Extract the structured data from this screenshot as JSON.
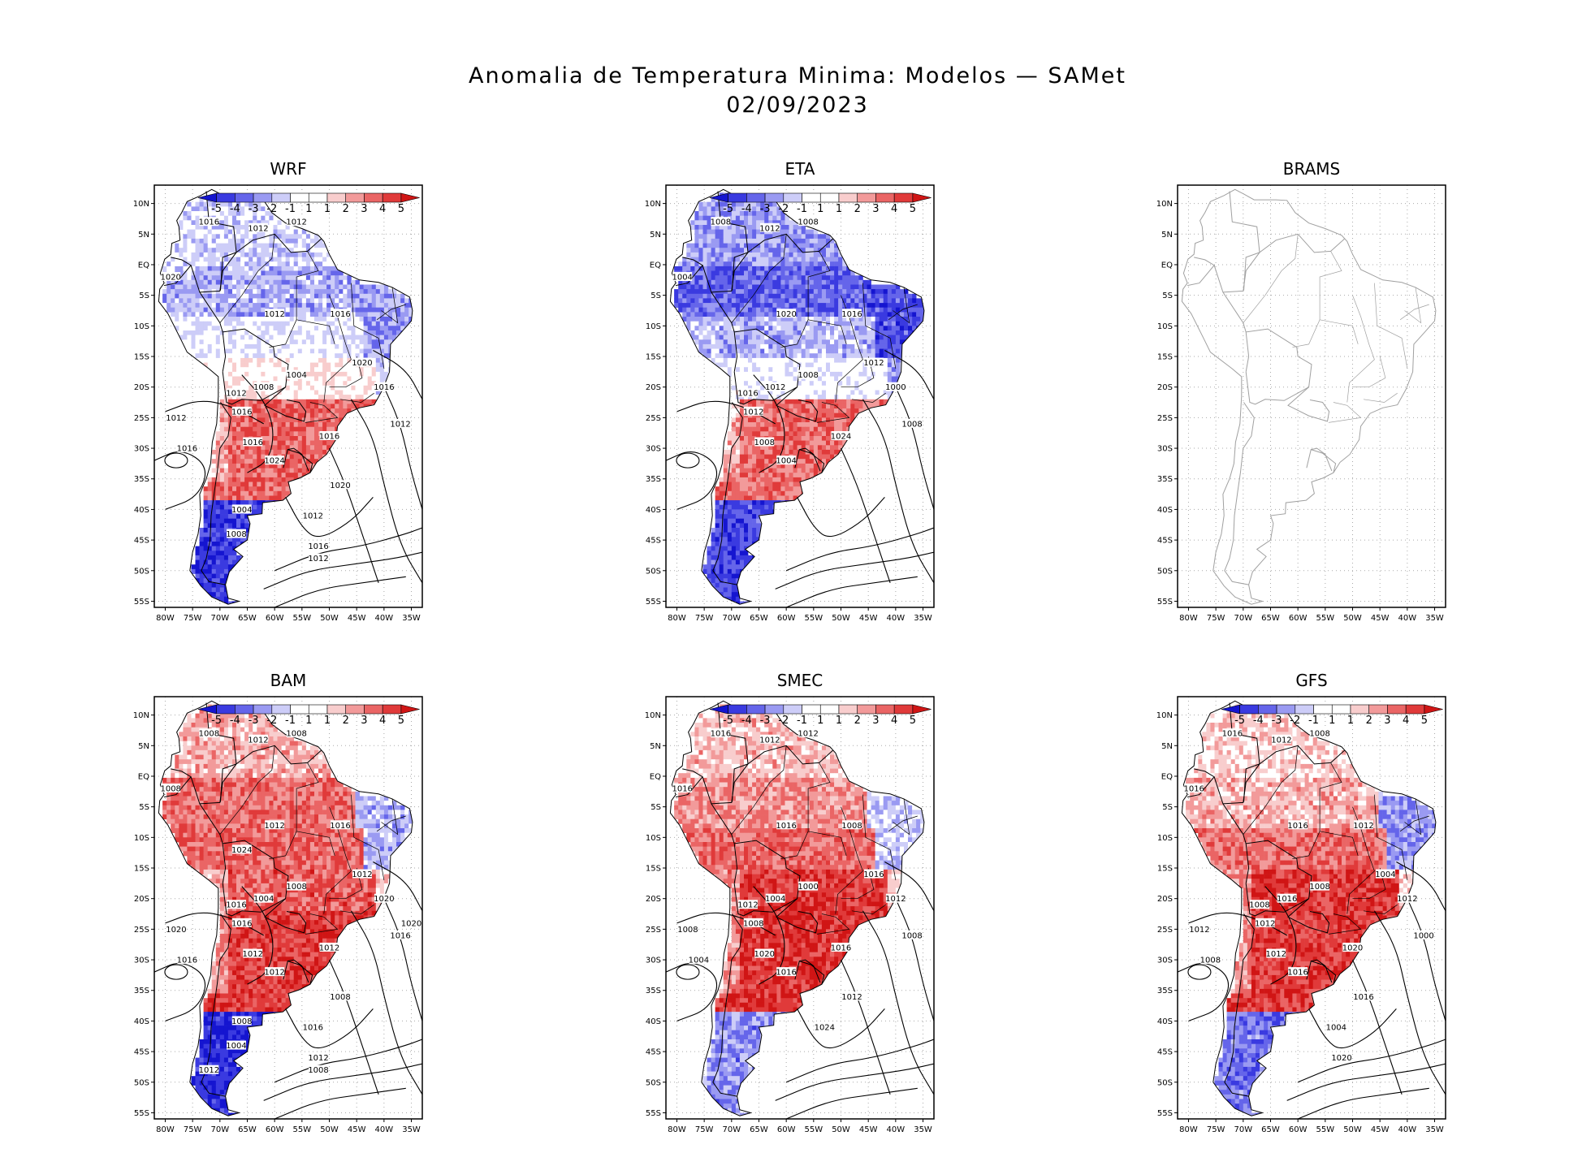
{
  "figure": {
    "title_line1": "Anomalia de Temperatura Minima: Modelos — SAMet",
    "title_line2": "02/09/2023"
  },
  "chart_data": {
    "type": "heatmap",
    "variable": "Anomalia de Temperatura Minima (°C) with sea-level pressure isobars (hPa)",
    "x_ticks": [
      "80W",
      "75W",
      "70W",
      "65W",
      "60W",
      "55W",
      "50W",
      "45W",
      "40W",
      "35W"
    ],
    "y_ticks": [
      "10N",
      "5N",
      "EQ",
      "5S",
      "10S",
      "15S",
      "20S",
      "25S",
      "30S",
      "35S",
      "40S",
      "45S",
      "50S",
      "55S"
    ],
    "xlim": [
      -82,
      -33
    ],
    "ylim": [
      -56,
      13
    ],
    "colorbar": {
      "labels": [
        "-5",
        "-4",
        "-3",
        "-2",
        "-1",
        "1",
        "1",
        "2",
        "3",
        "4",
        "5"
      ],
      "colors": [
        "#1515d0",
        "#3a3ae0",
        "#6565ea",
        "#9a9af2",
        "#cdcdf8",
        "#ffffff",
        "#ffffff",
        "#f8cdcd",
        "#f29a9a",
        "#ea6565",
        "#e03a3a",
        "#d01515"
      ]
    },
    "panels": [
      {
        "name": "WRF",
        "has_data": true,
        "anomaly": {
          "north": -1.2,
          "amazon": -2.0,
          "northeast": -2.5,
          "center": 0.6,
          "south": 3.6,
          "patagonia": -4.6
        },
        "isobar_labels": [
          "1012",
          "1016",
          "1012",
          "1012",
          "1020",
          "1012",
          "1016",
          "1020",
          "1016",
          "1012",
          "1004",
          "1008",
          "1012",
          "1016",
          "1016",
          "1024",
          "1016",
          "1020",
          "1012",
          "1016",
          "1012",
          "1016",
          "1012",
          "1008",
          "1004"
        ]
      },
      {
        "name": "ETA",
        "has_data": true,
        "anomaly": {
          "north": -2.4,
          "amazon": -3.6,
          "northeast": -4.2,
          "center": -0.3,
          "south": 3.4,
          "patagonia": -4.2
        },
        "isobar_labels": [
          "1008",
          "1008",
          "1012",
          "1008",
          "1004",
          "1020",
          "1016",
          "1012",
          "1000",
          "1008",
          "1008",
          "1012",
          "1016",
          "1012",
          "1008",
          "1004",
          "1024"
        ]
      },
      {
        "name": "BRAMS",
        "has_data": false,
        "anomaly": {},
        "isobar_labels": []
      },
      {
        "name": "BAM",
        "has_data": true,
        "anomaly": {
          "north": 2.0,
          "amazon": 3.4,
          "northeast": -2.0,
          "center": 3.8,
          "south": 4.4,
          "patagonia": -5.0
        },
        "isobar_labels": [
          "1012",
          "1008",
          "1012",
          "1008",
          "1008",
          "1012",
          "1016",
          "1012",
          "1020",
          "1016",
          "1008",
          "1004",
          "1016",
          "1016",
          "1012",
          "1012",
          "1012",
          "1008",
          "1020",
          "1016",
          "1016",
          "1012",
          "1008",
          "1004",
          "1008",
          "1012",
          "1020",
          "1024"
        ]
      },
      {
        "name": "SMEC",
        "has_data": true,
        "anomaly": {
          "north": 1.8,
          "amazon": 2.6,
          "northeast": -1.6,
          "center": 4.6,
          "south": 4.8,
          "patagonia": -2.8
        },
        "isobar_labels": [
          "1012",
          "1016",
          "1012",
          "1012",
          "1016",
          "1016",
          "1008",
          "1016",
          "1012",
          "1008",
          "1000",
          "1004",
          "1012",
          "1008",
          "1020",
          "1016",
          "1016",
          "1012",
          "1008",
          "1004",
          "1024"
        ]
      },
      {
        "name": "GFS",
        "has_data": true,
        "anomaly": {
          "north": 1.4,
          "amazon": 2.0,
          "northeast": -2.6,
          "center": 4.6,
          "south": 4.4,
          "patagonia": -3.2
        },
        "isobar_labels": [
          "1012",
          "1016",
          "1012",
          "1008",
          "1016",
          "1016",
          "1012",
          "1004",
          "1012",
          "1000",
          "1008",
          "1016",
          "1008",
          "1012",
          "1012",
          "1016",
          "1020",
          "1016",
          "1012",
          "1008",
          "1004",
          "1020"
        ]
      }
    ]
  }
}
